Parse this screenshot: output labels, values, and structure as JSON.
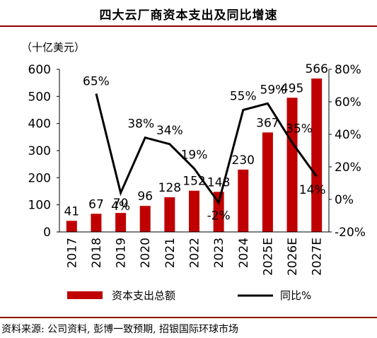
{
  "title": "四大云厂商资本支出及同比增速",
  "unit_label": "（十亿美元）",
  "source": "资料来源: 公司资料, 彭博一致预期, 招银国际环球市场",
  "colors": {
    "bar": "#c00000",
    "line": "#000000",
    "rule": "#8b0000"
  },
  "chart_data": {
    "type": "bar",
    "categories": [
      "2017",
      "2018",
      "2019",
      "2020",
      "2021",
      "2022",
      "2023",
      "2024",
      "2025E",
      "2026E",
      "2027E"
    ],
    "series": [
      {
        "name": "资本支出总额",
        "type": "bar",
        "axis": "left",
        "values": [
          41,
          67,
          70,
          96,
          128,
          152,
          148,
          230,
          367,
          495,
          566
        ],
        "labels": [
          "41",
          "67",
          "70",
          "96",
          "128",
          "152",
          "148",
          "230",
          "367",
          "495",
          "566"
        ]
      },
      {
        "name": "同比%",
        "type": "line",
        "axis": "right",
        "values": [
          null,
          65,
          4,
          38,
          34,
          19,
          -2,
          55,
          59,
          35,
          14
        ],
        "labels": [
          "",
          "65%",
          "4%",
          "38%",
          "34%",
          "19%",
          "-2%",
          "55%",
          "59%",
          "35%",
          "14%"
        ]
      }
    ],
    "y_left": {
      "ylim": [
        0,
        600
      ],
      "ticks": [
        "0",
        "100",
        "200",
        "300",
        "400",
        "500",
        "600"
      ]
    },
    "y_right": {
      "ylim": [
        -20,
        80
      ],
      "ticks": [
        "-20%",
        "0%",
        "20%",
        "40%",
        "60%",
        "80%"
      ]
    },
    "grid": false,
    "legend_position": "bottom"
  }
}
